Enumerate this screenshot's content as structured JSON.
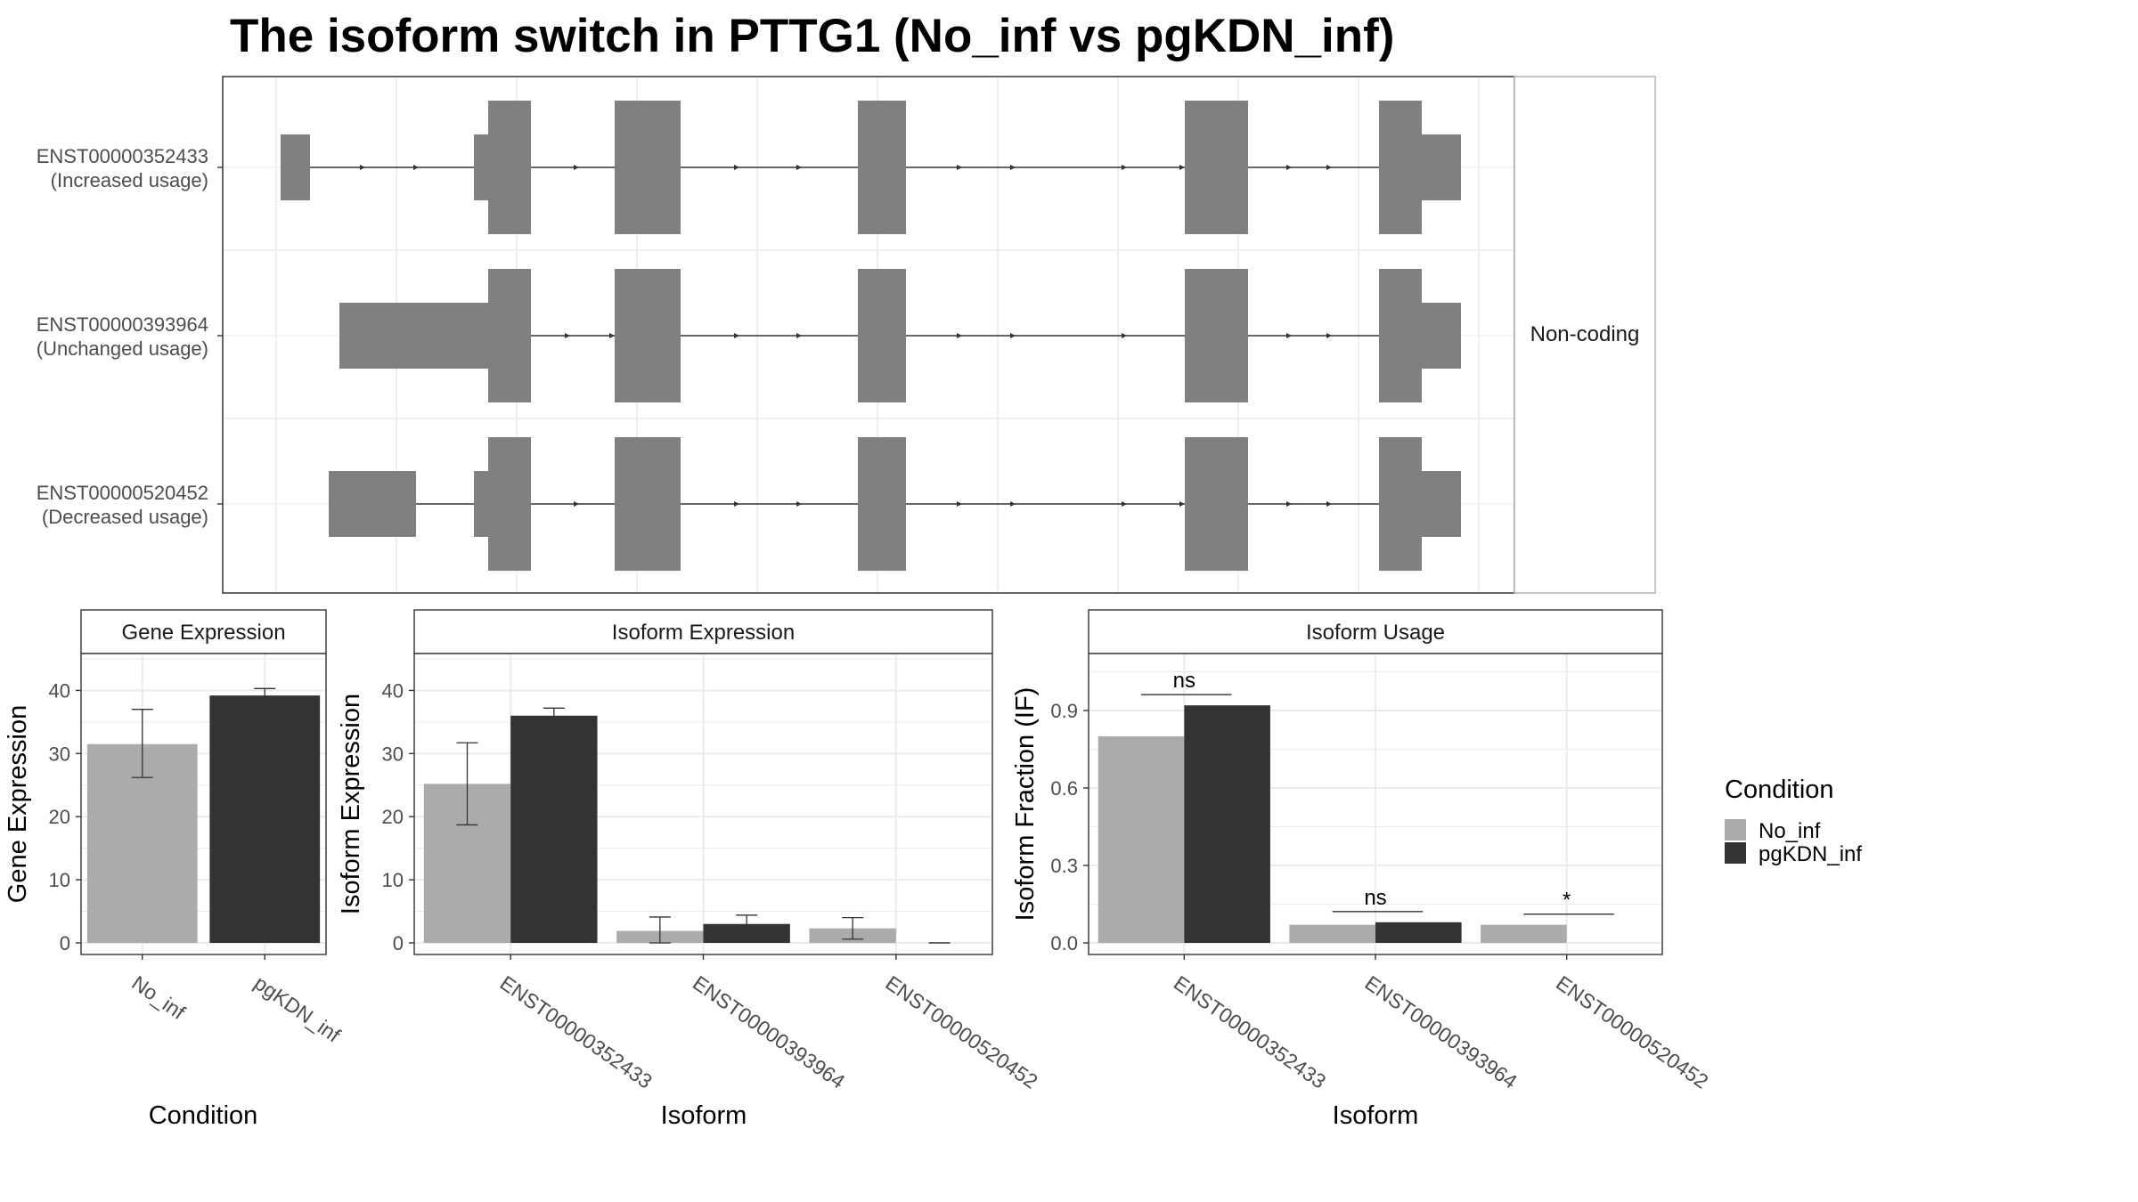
{
  "title": "The isoform switch in PTTG1 (No_inf vs pgKDN_inf)",
  "colors": {
    "No_inf": "#ababab",
    "pgKDN_inf": "#333333",
    "transcript_fill": "#808080",
    "strip_bg": "#ffffff",
    "grid": "#ebebeb"
  },
  "structure": {
    "facet_label": "Non-coding",
    "transcripts": [
      {
        "id": "ENST00000352433",
        "note": "(Increased usage)"
      },
      {
        "id": "ENST00000393964",
        "note": "(Unchanged usage)"
      },
      {
        "id": "ENST00000520452",
        "note": "(Decreased usage)"
      }
    ]
  },
  "legend": {
    "title": "Condition",
    "entries": [
      "No_inf",
      "pgKDN_inf"
    ]
  },
  "chart_data": [
    {
      "type": "bar",
      "strip": "Gene Expression",
      "categories": [
        "No_inf",
        "pgKDN_inf"
      ],
      "values": [
        31.5,
        39.2
      ],
      "errors": [
        [
          26.2,
          37.0
        ],
        [
          37.9,
          40.3
        ]
      ],
      "xlabel": "Condition",
      "ylabel": "Gene Expression",
      "ylim": [
        0,
        45
      ],
      "yticks": [
        0,
        10,
        20,
        30,
        40
      ],
      "grid": true
    },
    {
      "type": "bar",
      "strip": "Isoform Expression",
      "categories": [
        "ENST00000352433",
        "ENST00000393964",
        "ENST00000520452"
      ],
      "series": [
        {
          "name": "No_inf",
          "values": [
            25.2,
            1.9,
            2.3
          ],
          "errors": [
            [
              18.7,
              31.7
            ],
            [
              0.0,
              4.1
            ],
            [
              0.6,
              4.0
            ]
          ]
        },
        {
          "name": "pgKDN_inf",
          "values": [
            36.0,
            3.0,
            0.0
          ],
          "errors": [
            [
              34.8,
              37.2
            ],
            [
              1.7,
              4.4
            ],
            [
              0.0,
              0.0
            ]
          ]
        }
      ],
      "xlabel": "Isoform",
      "ylabel": "Isoform Expression",
      "ylim": [
        0,
        45
      ],
      "yticks": [
        0,
        10,
        20,
        30,
        40
      ],
      "grid": true
    },
    {
      "type": "bar",
      "strip": "Isoform Usage",
      "categories": [
        "ENST00000352433",
        "ENST00000393964",
        "ENST00000520452"
      ],
      "series": [
        {
          "name": "No_inf",
          "values": [
            0.8,
            0.07,
            0.07
          ]
        },
        {
          "name": "pgKDN_inf",
          "values": [
            0.92,
            0.08,
            0.0
          ]
        }
      ],
      "significance": [
        "ns",
        "ns",
        "*"
      ],
      "xlabel": "Isoform",
      "ylabel": "Isoform Fraction (IF)",
      "ylim": [
        0,
        1.1
      ],
      "yticks": [
        0.0,
        0.3,
        0.6,
        0.9
      ],
      "ytick_labels": [
        "0.0",
        "0.3",
        "0.6",
        "0.9"
      ],
      "grid": true
    }
  ]
}
